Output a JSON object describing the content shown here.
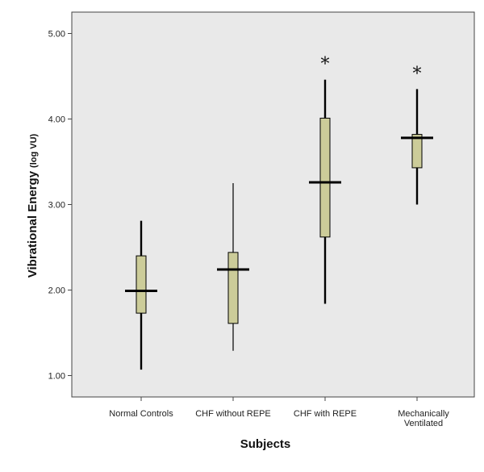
{
  "chart_data": {
    "type": "boxplot",
    "xlabel": "Subjects",
    "ylabel_main": "Vibrational Energy",
    "ylabel_unit": "(log VU)",
    "ylim": [
      0.75,
      5.25
    ],
    "yticks": [
      "1.00",
      "2.00",
      "3.00",
      "4.00",
      "5.00"
    ],
    "grid": false,
    "plot_background": "#e9e9e9",
    "box_color": "#cccc99",
    "categories": [
      [
        "Normal Controls"
      ],
      [
        "CHF without REPE"
      ],
      [
        "CHF with REPE"
      ],
      [
        "Mechanically",
        "Ventilated"
      ]
    ],
    "boxes": [
      {
        "whisker_low": 1.07,
        "q1": 1.73,
        "median": 1.99,
        "q3": 2.4,
        "whisker_high": 2.81,
        "annotation": ""
      },
      {
        "whisker_low": 1.29,
        "q1": 1.61,
        "median": 2.24,
        "q3": 2.44,
        "whisker_high": 3.25,
        "annotation": ""
      },
      {
        "whisker_low": 1.84,
        "q1": 2.62,
        "median": 3.26,
        "q3": 4.01,
        "whisker_high": 4.46,
        "annotation": "*"
      },
      {
        "whisker_low": 3.0,
        "q1": 3.43,
        "median": 3.78,
        "q3": 3.82,
        "whisker_high": 4.35,
        "annotation": "*"
      }
    ]
  }
}
